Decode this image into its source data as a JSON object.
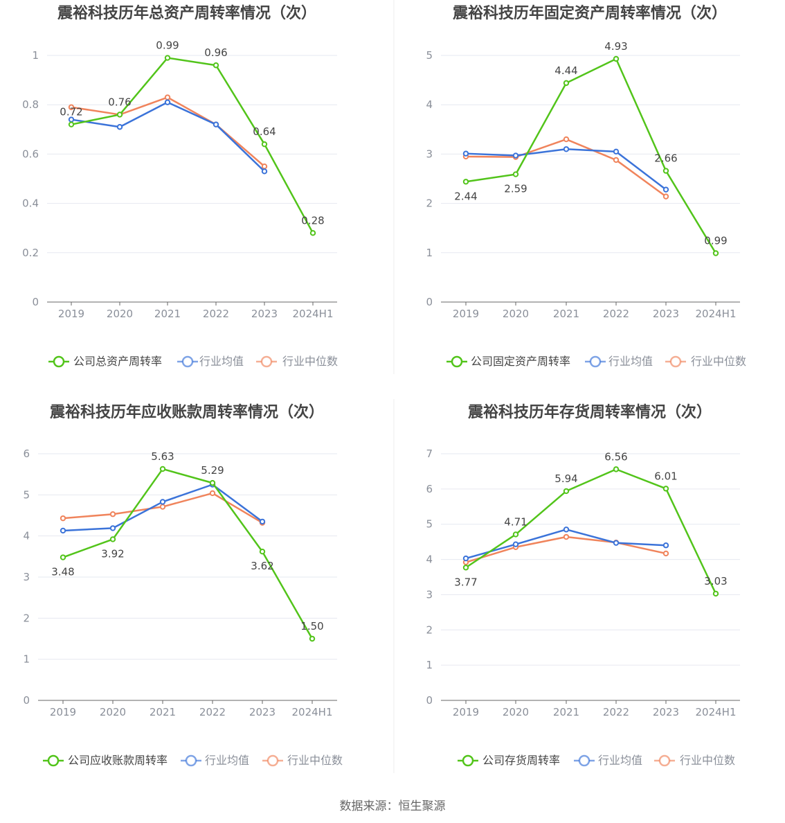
{
  "charts": [
    {
      "type": "line",
      "title": "震裕科技历年总资产周转率情况（次）",
      "categories": [
        "2019",
        "2020",
        "2021",
        "2022",
        "2023",
        "2024H1"
      ],
      "y_ticks": [
        "0",
        "0.2",
        "0.4",
        "0.6",
        "0.8",
        "1"
      ],
      "ylim": [
        0,
        1
      ],
      "series": [
        {
          "name": "公司总资产周转率",
          "color": "#52c41a",
          "values": [
            0.72,
            0.76,
            0.99,
            0.96,
            0.64,
            0.28
          ],
          "labels": [
            "0.72",
            "0.76",
            "0.99",
            "0.96",
            "0.64",
            "0.28"
          ]
        },
        {
          "name": "行业均值",
          "color": "#3b73d9",
          "values": [
            0.74,
            0.71,
            0.81,
            0.72,
            0.53,
            null
          ]
        },
        {
          "name": "行业中位数",
          "color": "#f0845c",
          "values": [
            0.79,
            0.76,
            0.83,
            0.72,
            0.55,
            null
          ]
        }
      ]
    },
    {
      "type": "line",
      "title": "震裕科技历年固定资产周转率情况（次）",
      "categories": [
        "2019",
        "2020",
        "2021",
        "2022",
        "2023",
        "2024H1"
      ],
      "y_ticks": [
        "0",
        "1",
        "2",
        "3",
        "4",
        "5"
      ],
      "ylim": [
        0,
        5
      ],
      "series": [
        {
          "name": "公司固定资产周转率",
          "color": "#52c41a",
          "values": [
            2.44,
            2.59,
            4.44,
            4.93,
            2.66,
            0.99
          ],
          "labels": [
            "2.44",
            "2.59",
            "4.44",
            "4.93",
            "2.66",
            "0.99"
          ]
        },
        {
          "name": "行业均值",
          "color": "#3b73d9",
          "values": [
            3.01,
            2.97,
            3.1,
            3.05,
            2.28,
            null
          ]
        },
        {
          "name": "行业中位数",
          "color": "#f0845c",
          "values": [
            2.95,
            2.94,
            3.3,
            2.88,
            2.14,
            null
          ]
        }
      ]
    },
    {
      "type": "line",
      "title": "震裕科技历年应收账款周转率情况（次）",
      "categories": [
        "2019",
        "2020",
        "2021",
        "2022",
        "2023",
        "2024H1"
      ],
      "y_ticks": [
        "0",
        "1",
        "2",
        "3",
        "4",
        "5",
        "6"
      ],
      "ylim": [
        0,
        6
      ],
      "series": [
        {
          "name": "公司应收账款周转率",
          "color": "#52c41a",
          "values": [
            3.48,
            3.92,
            5.63,
            5.29,
            3.62,
            1.5
          ],
          "labels": [
            "3.48",
            "3.92",
            "5.63",
            "5.29",
            "3.62",
            "1.50"
          ]
        },
        {
          "name": "行业均值",
          "color": "#3b73d9",
          "values": [
            4.13,
            4.19,
            4.83,
            5.25,
            4.35,
            null
          ]
        },
        {
          "name": "行业中位数",
          "color": "#f0845c",
          "values": [
            4.43,
            4.53,
            4.71,
            5.04,
            4.32,
            null
          ]
        }
      ]
    },
    {
      "type": "line",
      "title": "震裕科技历年存货周转率情况（次）",
      "categories": [
        "2019",
        "2020",
        "2021",
        "2022",
        "2023",
        "2024H1"
      ],
      "y_ticks": [
        "0",
        "1",
        "2",
        "3",
        "4",
        "5",
        "6",
        "7"
      ],
      "ylim": [
        0,
        7
      ],
      "series": [
        {
          "name": "公司存货周转率",
          "color": "#52c41a",
          "values": [
            3.77,
            4.71,
            5.94,
            6.56,
            6.01,
            3.03
          ],
          "labels": [
            "3.77",
            "4.71",
            "5.94",
            "6.56",
            "6.01",
            "3.03"
          ]
        },
        {
          "name": "行业均值",
          "color": "#3b73d9",
          "values": [
            4.03,
            4.43,
            4.85,
            4.47,
            4.4,
            null
          ]
        },
        {
          "name": "行业中位数",
          "color": "#f0845c",
          "values": [
            3.92,
            4.35,
            4.64,
            4.48,
            4.17,
            null
          ]
        }
      ]
    }
  ],
  "footer": {
    "source": "数据来源：恒生聚源"
  },
  "colors": {
    "grid": "#e6e8f0",
    "axis": "#666666",
    "tick_text": "#8a8f99",
    "title": "#444444",
    "divider": "#e8e8e8"
  }
}
